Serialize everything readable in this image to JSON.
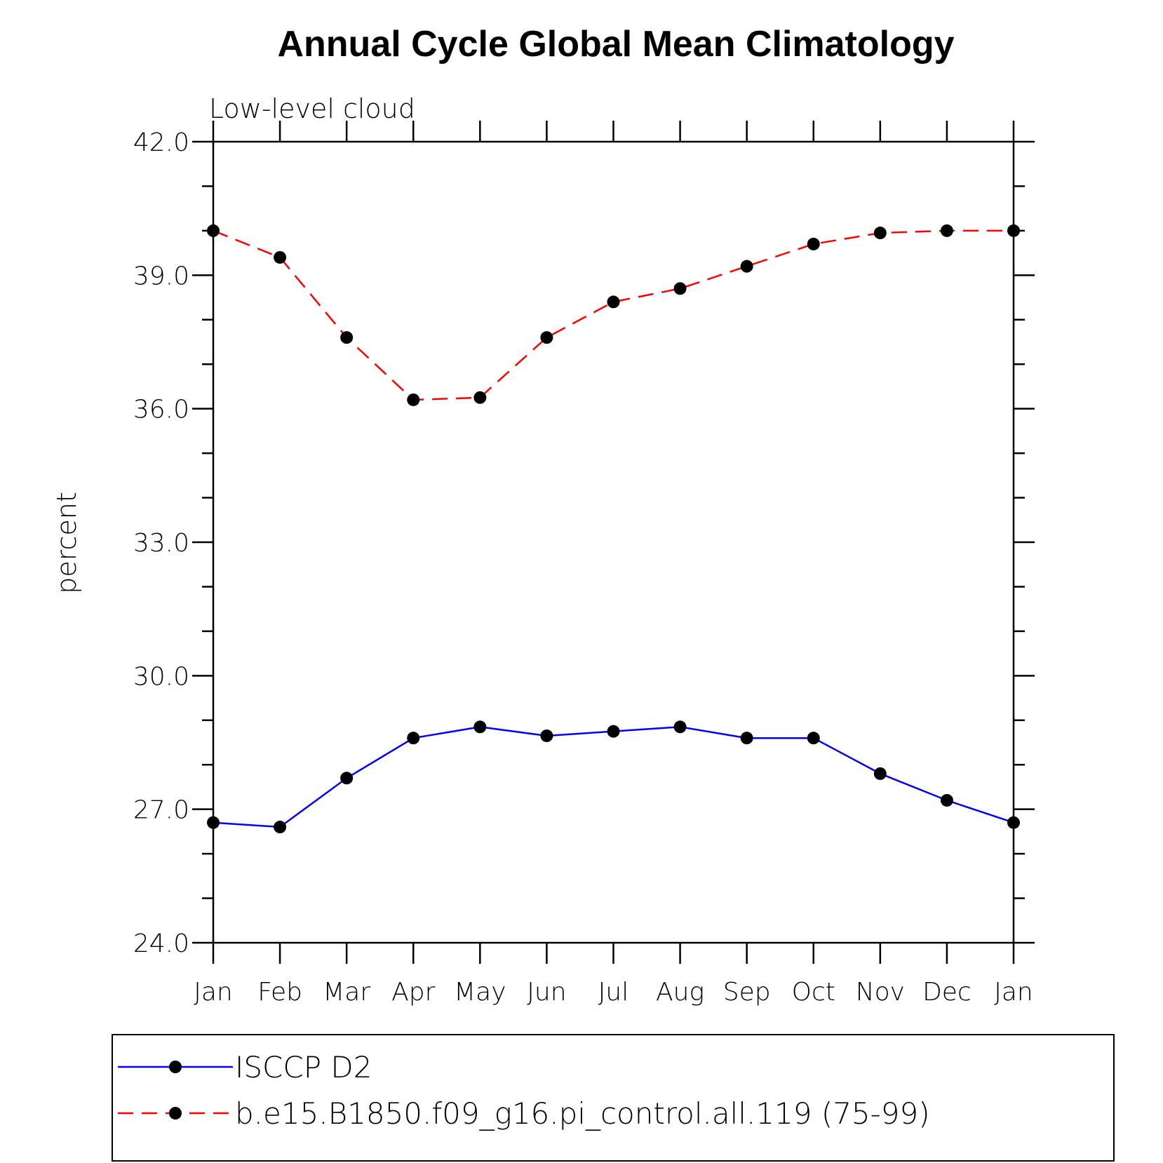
{
  "chart_data": {
    "type": "line",
    "title": "Annual Cycle Global Mean Climatology",
    "subtitle": "Low-level cloud",
    "xlabel": "",
    "ylabel": "percent",
    "ylim": [
      24.0,
      42.0
    ],
    "yticks": [
      "24.0",
      "27.0",
      "30.0",
      "33.0",
      "36.0",
      "39.0",
      "42.0"
    ],
    "categories": [
      "Jan",
      "Feb",
      "Mar",
      "Apr",
      "May",
      "Jun",
      "Jul",
      "Aug",
      "Sep",
      "Oct",
      "Nov",
      "Dec",
      "Jan"
    ],
    "grid": false,
    "legend_position": "bottom",
    "series": [
      {
        "name": "ISCCP D2",
        "color": "#0000ff",
        "dash": "solid",
        "marker": "filled-circle",
        "values": [
          26.7,
          26.6,
          27.7,
          28.6,
          28.85,
          28.65,
          28.75,
          28.85,
          28.6,
          28.6,
          27.8,
          27.2,
          26.7
        ]
      },
      {
        "name": "b.e15.B1850.f09_g16.pi_control.all.119 (75-99)",
        "color": "#ff0000",
        "dash": "dashed",
        "marker": "filled-circle",
        "values": [
          40.0,
          39.4,
          37.6,
          36.2,
          36.25,
          37.6,
          38.4,
          38.7,
          39.2,
          39.7,
          39.95,
          40.0,
          40.0
        ]
      }
    ]
  }
}
